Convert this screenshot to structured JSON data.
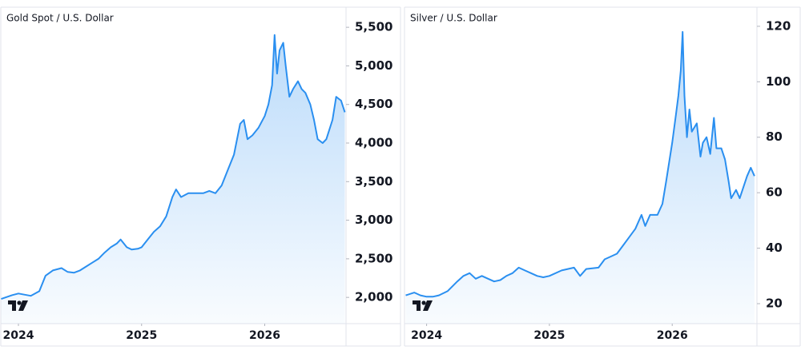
{
  "chart_data": [
    {
      "type": "area",
      "title": "Gold Spot / U.S. Dollar",
      "color": "#2a8ff0",
      "x": [
        2023.86,
        2023.95,
        2024.0,
        2024.1,
        2024.17,
        2024.22,
        2024.28,
        2024.35,
        2024.4,
        2024.45,
        2024.5,
        2024.55,
        2024.6,
        2024.65,
        2024.7,
        2024.75,
        2024.8,
        2024.83,
        2024.88,
        2024.92,
        2024.97,
        2025.0,
        2025.05,
        2025.1,
        2025.15,
        2025.2,
        2025.25,
        2025.28,
        2025.32,
        2025.38,
        2025.45,
        2025.5,
        2025.55,
        2025.6,
        2025.65,
        2025.7,
        2025.75,
        2025.8,
        2025.83,
        2025.86,
        2025.9,
        2025.95,
        2026.0,
        2026.03,
        2026.06,
        2026.08,
        2026.1,
        2026.12,
        2026.15,
        2026.17,
        2026.2,
        2026.23,
        2026.27,
        2026.3,
        2026.33,
        2026.37,
        2026.4,
        2026.43,
        2026.47,
        2026.5,
        2026.55,
        2026.58,
        2026.62,
        2026.65
      ],
      "values": [
        1980,
        2030,
        2050,
        2020,
        2080,
        2280,
        2350,
        2380,
        2330,
        2320,
        2350,
        2400,
        2450,
        2500,
        2580,
        2650,
        2700,
        2750,
        2650,
        2620,
        2630,
        2650,
        2750,
        2850,
        2920,
        3050,
        3300,
        3400,
        3300,
        3350,
        3350,
        3350,
        3380,
        3350,
        3450,
        3650,
        3850,
        4250,
        4300,
        4050,
        4100,
        4200,
        4350,
        4500,
        4750,
        5400,
        4900,
        5200,
        5300,
        5000,
        4600,
        4700,
        4800,
        4700,
        4650,
        4500,
        4300,
        4050,
        4000,
        4050,
        4300,
        4600,
        4550,
        4400
      ],
      "xlim": [
        2023.857,
        2026.66
      ],
      "xticks": [
        2024,
        2025,
        2026
      ],
      "ylim": [
        1660,
        5750
      ],
      "yticks": [
        {
          "value": 2000,
          "label": "2,000"
        },
        {
          "value": 2500,
          "label": "2,500"
        },
        {
          "value": 3000,
          "label": "3,000"
        },
        {
          "value": 3500,
          "label": "3,500"
        },
        {
          "value": 4000,
          "label": "4,000"
        },
        {
          "value": 4500,
          "label": "4,500"
        },
        {
          "value": 5000,
          "label": "5,000"
        },
        {
          "value": 5500,
          "label": "5,500"
        }
      ]
    },
    {
      "type": "area",
      "title": "Silver / U.S. Dollar",
      "color": "#2a8ff0",
      "x": [
        2023.83,
        2023.9,
        2023.95,
        2024.0,
        2024.05,
        2024.1,
        2024.17,
        2024.25,
        2024.3,
        2024.35,
        2024.4,
        2024.45,
        2024.5,
        2024.55,
        2024.6,
        2024.65,
        2024.7,
        2024.75,
        2024.8,
        2024.85,
        2024.9,
        2024.95,
        2025.0,
        2025.1,
        2025.15,
        2025.2,
        2025.25,
        2025.3,
        2025.4,
        2025.45,
        2025.5,
        2025.55,
        2025.6,
        2025.65,
        2025.7,
        2025.75,
        2025.78,
        2025.82,
        2025.88,
        2025.92,
        2025.95,
        2026.0,
        2026.03,
        2026.05,
        2026.07,
        2026.085,
        2026.1,
        2026.12,
        2026.14,
        2026.16,
        2026.2,
        2026.23,
        2026.25,
        2026.28,
        2026.31,
        2026.34,
        2026.36,
        2026.4,
        2026.43,
        2026.46,
        2026.48,
        2026.52,
        2026.55,
        2026.58,
        2026.61,
        2026.64,
        2026.67
      ],
      "values": [
        23,
        24,
        23,
        22.5,
        22.5,
        23,
        24.5,
        28,
        30,
        31,
        29,
        30,
        29,
        28,
        28.5,
        30,
        31,
        33,
        32,
        31,
        30,
        29.5,
        30,
        32,
        32.5,
        33,
        30,
        32.5,
        33,
        36,
        37,
        38,
        41,
        44,
        47,
        52,
        48,
        52,
        52,
        56,
        64,
        78,
        88,
        95,
        104,
        118,
        95,
        80,
        90,
        82,
        85,
        73,
        78,
        80,
        74,
        87,
        76,
        76,
        72,
        64,
        58,
        61,
        58,
        62,
        66,
        69,
        66
      ],
      "xlim": [
        2023.82,
        2026.69
      ],
      "xticks": [
        2024,
        2025,
        2026
      ],
      "ylim": [
        12.8,
        126.6
      ],
      "yticks": [
        20,
        40,
        60,
        80,
        100,
        120
      ]
    }
  ]
}
